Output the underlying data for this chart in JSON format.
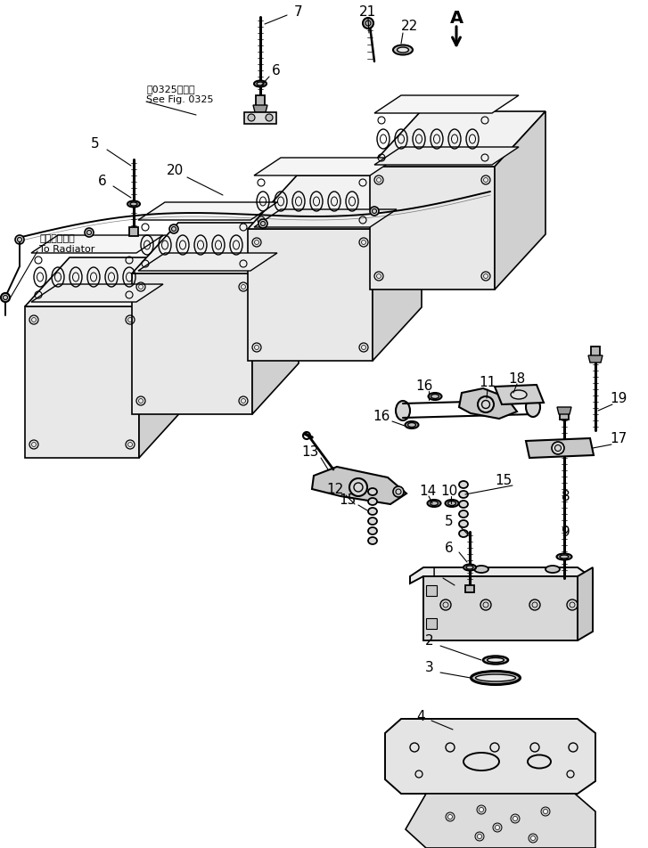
{
  "background_color": "#ffffff",
  "line_color": "#000000",
  "figsize": [
    7.27,
    9.53
  ],
  "dpi": 100,
  "label_font_size": 11,
  "small_font_size": 8,
  "radiator_jp": "ラジエータへ",
  "radiator_en": "To Radiator",
  "fig_ref_jp": "第0325図参照",
  "fig_ref_en": "See Fig. 0325"
}
